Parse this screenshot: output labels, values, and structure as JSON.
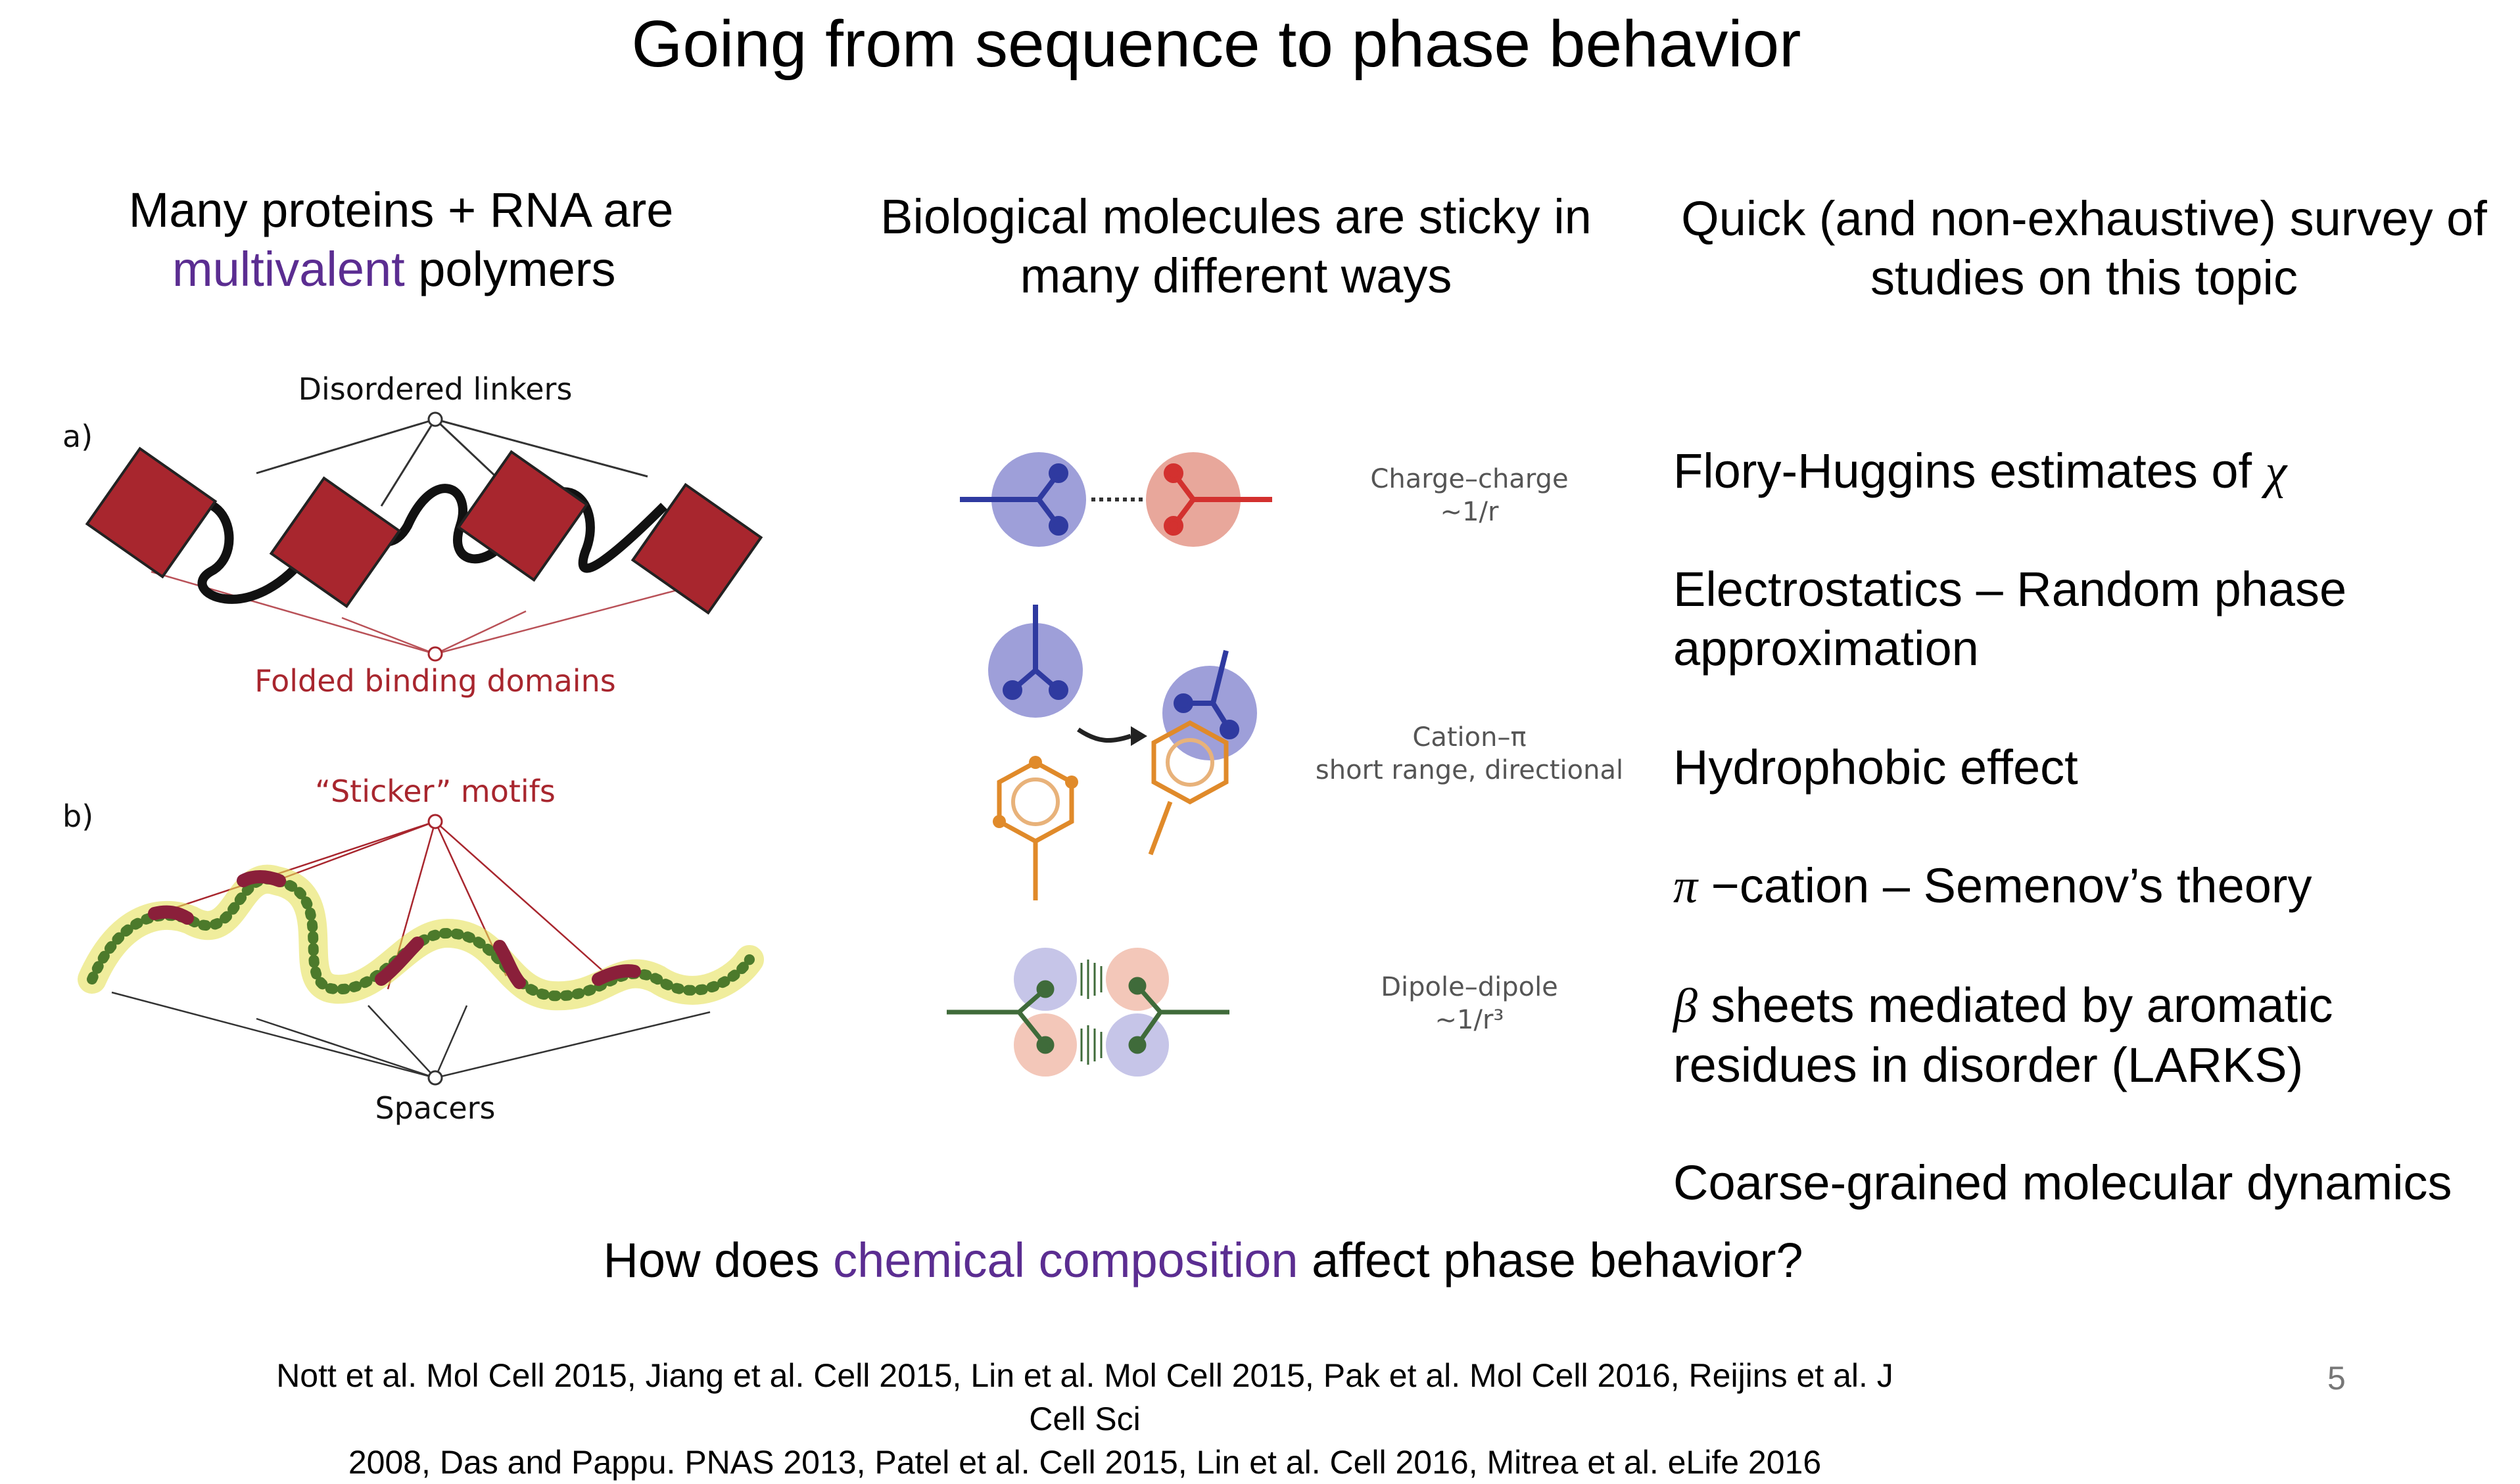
{
  "slide": {
    "title": "Going from sequence to phase behavior",
    "page_number": "5"
  },
  "left_column": {
    "heading_line1": "Many proteins + RNA are",
    "heading_highlight": "multivalent",
    "heading_rest": " polymers",
    "panel_a_label": "a)",
    "panel_a_top_label": "Disordered linkers",
    "panel_a_bottom_label": "Folded binding domains",
    "panel_b_label": "b)",
    "panel_b_top_label": "“Sticker” motifs",
    "panel_b_bottom_label": "Spacers"
  },
  "middle_column": {
    "heading_line1": "Biological molecules are sticky in",
    "heading_line2": "many different ways",
    "interactions": [
      {
        "name": "Charge–charge",
        "detail": "~1/r"
      },
      {
        "name": "Cation–π",
        "detail": "short range, directional"
      },
      {
        "name": "Dipole–dipole",
        "detail": "~1/r³"
      }
    ]
  },
  "right_column": {
    "heading_line1": "Quick (and non-exhaustive) survey of",
    "heading_line2": "studies on this topic",
    "items": {
      "flory_text": "Flory-Huggins estimates of ",
      "flory_symbol": "χ",
      "electro_line1": "Electrostatics – Random phase",
      "electro_line2": "approximation",
      "hydrophobic": "Hydrophobic effect",
      "pi_symbol": "π",
      "pi_text": " −cation – Semenov’s theory",
      "beta_symbol": "β",
      "beta_line1": " sheets mediated by aromatic",
      "beta_line2": "residues in disorder (LARKS)",
      "cgmd": "Coarse-grained molecular dynamics"
    }
  },
  "question": {
    "before": "How does ",
    "highlight": "chemical composition",
    "after": " affect phase behavior?"
  },
  "references": {
    "line1": "Nott et al. Mol Cell 2015, Jiang et al. Cell 2015, Lin et al. Mol Cell 2015, Pak et al. Mol Cell 2016,  Reijins et al. J Cell Sci",
    "line2": "2008, Das and Pappu. PNAS 2013, Patel et al. Cell 2015, Lin et al. Cell 2016, Mitrea et al. eLife 2016"
  },
  "colors": {
    "accent_purple": "#5b2d91",
    "domain_red": "#a8262e",
    "cation_blue": "#3a45a8",
    "anion_red": "#d3312f",
    "aromatic_orange": "#e08a2a",
    "dipole_green": "#3f6b3a"
  }
}
